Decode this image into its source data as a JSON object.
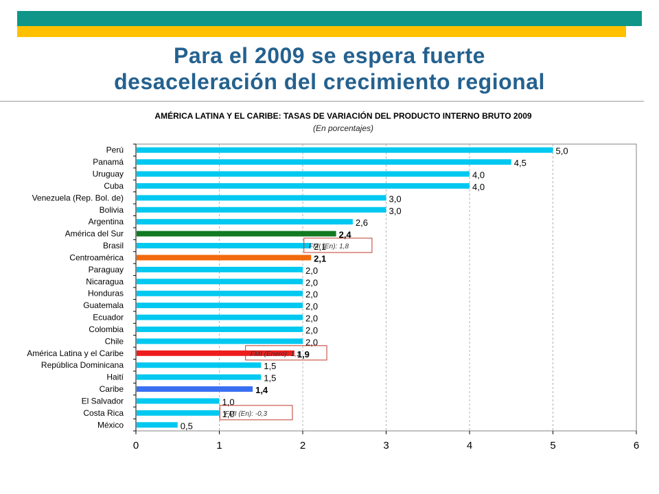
{
  "slide": {
    "title_line1": "Para el 2009 se espera fuerte",
    "title_line2": "desaceleración del crecimiento regional",
    "accent_top": "#0f9688",
    "accent_bottom": "#ffc000",
    "title_color": "#24618f"
  },
  "chart_data": {
    "type": "bar",
    "orientation": "horizontal",
    "title": "AMÉRICA LATINA Y EL CARIBE: TASAS DE VARIACIÓN DEL PRODUCTO INTERNO BRUTO 2009",
    "subtitle": "(En porcentajes)",
    "xlim": [
      0,
      6
    ],
    "xticks": [
      0,
      1,
      2,
      3,
      4,
      5,
      6
    ],
    "grid": "vertical dashed",
    "categories": [
      "Perú",
      "Panamá",
      "Uruguay",
      "Cuba",
      "Venezuela (Rep. Bol. de)",
      "Bolivia",
      "Argentina",
      "América del Sur",
      "Brasil",
      "Centroamérica",
      "Paraguay",
      "Nicaragua",
      "Honduras",
      "Guatemala",
      "Ecuador",
      "Colombia",
      "Chile",
      "América Latina y el Caribe",
      "República Dominicana",
      "Haití",
      "Caribe",
      "El Salvador",
      "Costa Rica",
      "México"
    ],
    "values": [
      5.0,
      4.5,
      4.0,
      4.0,
      3.0,
      3.0,
      2.6,
      2.4,
      2.1,
      2.1,
      2.0,
      2.0,
      2.0,
      2.0,
      2.0,
      2.0,
      2.0,
      1.9,
      1.5,
      1.5,
      1.4,
      1.0,
      1.0,
      0.5
    ],
    "value_labels": [
      "5,0",
      "4,5",
      "4,0",
      "4,0",
      "3,0",
      "3,0",
      "2,6",
      "2,4",
      "2,1",
      "2,1",
      "2,0",
      "2,0",
      "2,0",
      "2,0",
      "2,0",
      "2,0",
      "2,0",
      "1,9",
      "1,5",
      "1,5",
      "1,4",
      "1,0",
      "1,0",
      "0,5"
    ],
    "bold_labels": [
      "América del Sur",
      "Centroamérica",
      "América Latina y el Caribe",
      "Caribe"
    ],
    "colors": {
      "default": "#00c8f0",
      "América del Sur": "#117a22",
      "Centroamérica": "#f26a0d",
      "América Latina y el Caribe": "#ee1c1c",
      "Caribe": "#3a6ff2"
    },
    "annotations": [
      {
        "text": "FMI (En): 1,8",
        "category": "Brasil",
        "value": 1.8
      },
      {
        "text": "FMI (Enero): 1,1",
        "category": "América Latina y el Caribe",
        "value": 1.1
      },
      {
        "text": "FMI (En): -0,3",
        "category": "Costa Rica",
        "value": -0.3
      }
    ]
  }
}
